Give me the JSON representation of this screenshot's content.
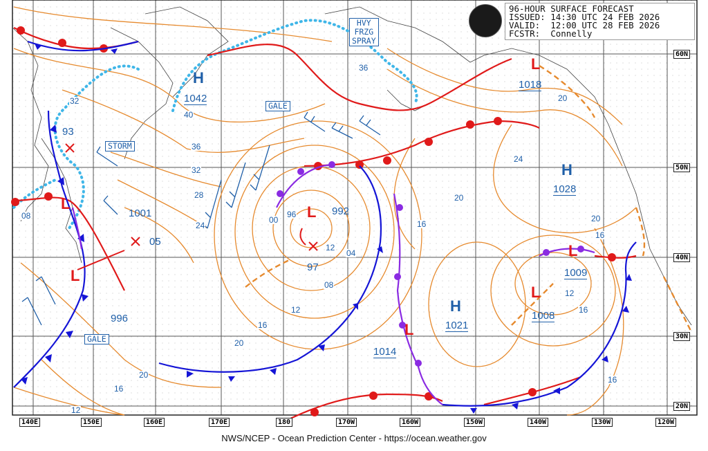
{
  "info": {
    "line1": "96-HOUR SURFACE FORECAST",
    "line2": "ISSUED: 14:30 UTC 24 FEB 2026",
    "line3": "VALID:  12:00 UTC 28 FEB 2026",
    "line4": "FCSTR:  Connelly"
  },
  "footer": "NWS/NCEP - Ocean Prediction Center - https://ocean.weather.gov",
  "longitudes": [
    "140E",
    "150E",
    "160E",
    "170E",
    "180",
    "170W",
    "160W",
    "150W",
    "140W",
    "130W",
    "120W"
  ],
  "latitudes": [
    "60N",
    "50N",
    "40N",
    "30N",
    "20N"
  ],
  "box_labels": [
    {
      "text": "HVY\nFRZG\nSPRAY",
      "name": "label-heavy-freezing-spray"
    },
    {
      "text": "GALE",
      "name": "label-gale-north"
    },
    {
      "text": "STORM",
      "name": "label-storm"
    },
    {
      "text": "GALE",
      "name": "label-gale-west"
    }
  ],
  "highs": [
    {
      "symbol": "H",
      "value": "1042"
    },
    {
      "symbol": "H",
      "value": "1028"
    },
    {
      "symbol": "H",
      "value": "1021"
    }
  ],
  "lows": [
    {
      "symbol": "L",
      "value": "992"
    },
    {
      "symbol": "L",
      "value": "1018"
    },
    {
      "symbol": "L",
      "value": "1001"
    },
    {
      "symbol": "L",
      "value": "996"
    },
    {
      "symbol": "L",
      "value": "1014"
    },
    {
      "symbol": "L",
      "value": "1009"
    },
    {
      "symbol": "L",
      "value": "1008"
    }
  ],
  "extra_values": [
    "93",
    "05",
    "97"
  ],
  "isobar_labels": [
    "40",
    "36",
    "32",
    "28",
    "24",
    "20",
    "16",
    "12",
    "08",
    "04",
    "00",
    "96",
    "36",
    "32",
    "20",
    "24",
    "20",
    "16",
    "16",
    "12",
    "16",
    "20",
    "16",
    "12",
    "16",
    "20",
    "08",
    "12"
  ],
  "colors": {
    "isobar": "#e68a2e",
    "cold_front": "#1515d6",
    "warm_front": "#e01a1a",
    "occluded": "#8a2be2",
    "ice": "#3fb6e8",
    "text_blue": "#1f5fa8"
  }
}
